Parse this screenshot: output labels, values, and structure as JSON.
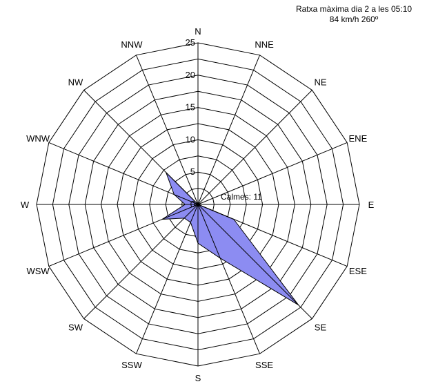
{
  "annotation": {
    "line1": "Ratxa màxima dia 2 a les 05:10",
    "line2": "84 km/h 260º"
  },
  "chart_data": {
    "type": "radar",
    "directions": [
      "N",
      "NNE",
      "NE",
      "ENE",
      "E",
      "ESE",
      "SE",
      "SSE",
      "S",
      "SSW",
      "SW",
      "WSW",
      "W",
      "WNW",
      "NW",
      "NNW"
    ],
    "values": [
      6,
      0,
      0,
      0,
      0,
      6,
      22,
      9,
      6,
      3,
      3,
      6,
      2,
      4,
      7,
      0
    ],
    "rlim": [
      0,
      25
    ],
    "rticks": [
      0,
      5,
      10,
      15,
      20,
      25
    ],
    "calms_label": "Calmes: 11",
    "fill_color": "#8c8cf2",
    "line_color": "#000000",
    "grid": true
  }
}
